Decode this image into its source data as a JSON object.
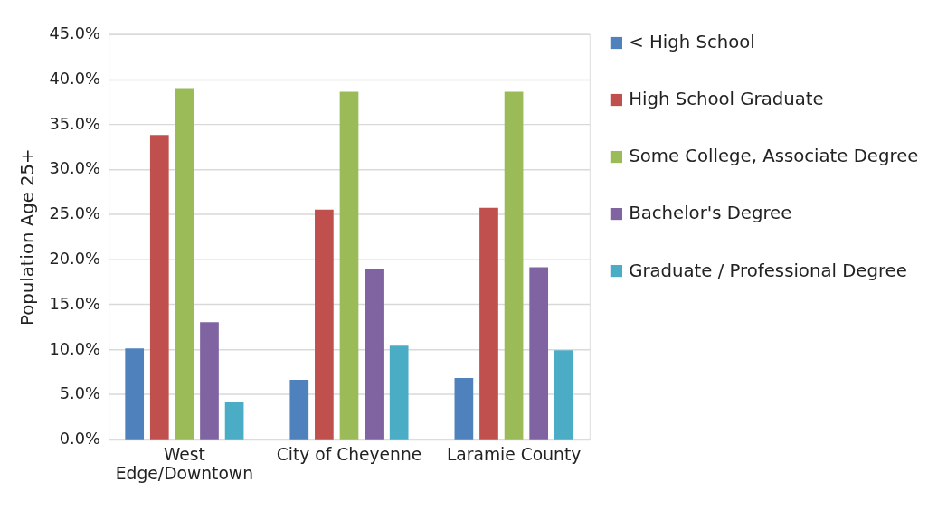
{
  "chart_data": {
    "type": "bar",
    "ylabel": "Population Age 25+",
    "categories": [
      "West Edge/Downtown",
      "City of Cheyenne",
      "Laramie County"
    ],
    "series": [
      {
        "name": "< High School",
        "color": "#4f81bd",
        "values": [
          10.1,
          6.6,
          6.8
        ]
      },
      {
        "name": "High School Graduate",
        "color": "#c0504d",
        "values": [
          33.8,
          25.5,
          25.7
        ]
      },
      {
        "name": "Some College, Associate Degree",
        "color": "#9bbb59",
        "values": [
          39.0,
          38.6,
          38.6
        ]
      },
      {
        "name": "Bachelor's Degree",
        "color": "#8064a2",
        "values": [
          13.0,
          18.9,
          19.1
        ]
      },
      {
        "name": "Graduate / Professional Degree",
        "color": "#4bacc6",
        "values": [
          4.2,
          10.4,
          9.9
        ]
      }
    ],
    "ylim": [
      0,
      45
    ],
    "yticks": [
      {
        "value": 0,
        "label": "0.0%"
      },
      {
        "value": 5,
        "label": "5.0%"
      },
      {
        "value": 10,
        "label": "10.0%"
      },
      {
        "value": 15,
        "label": "15.0%"
      },
      {
        "value": 20,
        "label": "20.0%"
      },
      {
        "value": 25,
        "label": "25.0%"
      },
      {
        "value": 30,
        "label": "30.0%"
      },
      {
        "value": 35,
        "label": "35.0%"
      },
      {
        "value": 40,
        "label": "40.0%"
      },
      {
        "value": 45,
        "label": "45.0%"
      }
    ],
    "grid": "y",
    "legend": "right"
  }
}
